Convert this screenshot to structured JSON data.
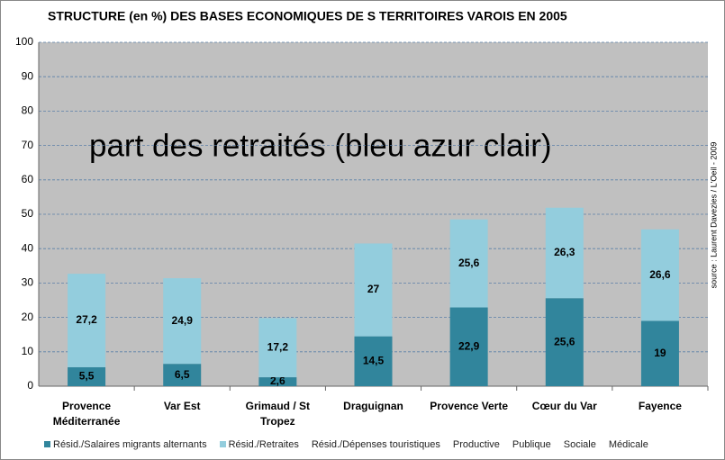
{
  "chart_data": {
    "type": "stacked_bar",
    "title": "STRUCTURE (en %) DES BASES ECONOMIQUES DE S TERRITOIRES VAROIS EN 2005",
    "annotation": "part des retraités (bleu azur clair)",
    "source": "source : Laurent Davezies / L'Oeil - 2009",
    "categories": [
      "Provence Méditerranée",
      "Var Est",
      "Grimaud / St Tropez",
      "Draguignan",
      "Provence Verte",
      "Cœur du Var",
      "Fayence"
    ],
    "series": [
      {
        "name": "Résid./Salaires migrants alternants",
        "color": "#31859c",
        "values": [
          5.5,
          6.5,
          2.6,
          14.5,
          22.9,
          25.6,
          19
        ],
        "value_labels": [
          "5,5",
          "6,5",
          "2,6",
          "14,5",
          "22,9",
          "25,6",
          "19"
        ]
      },
      {
        "name": "Résid./Retraites",
        "color": "#93cddd",
        "values": [
          27.2,
          24.9,
          17.2,
          27,
          25.6,
          26.3,
          26.6
        ],
        "value_labels": [
          "27,2",
          "24,9",
          "17,2",
          "27",
          "25,6",
          "26,3",
          "26,6"
        ]
      },
      {
        "name": "Résid./Dépenses touristiques",
        "values": [
          null,
          null,
          null,
          null,
          null,
          null,
          null
        ]
      },
      {
        "name": "Productive",
        "values": [
          null,
          null,
          null,
          null,
          null,
          null,
          null
        ]
      },
      {
        "name": "Publique",
        "values": [
          null,
          null,
          null,
          null,
          null,
          null,
          null
        ]
      },
      {
        "name": "Sociale",
        "values": [
          null,
          null,
          null,
          null,
          null,
          null,
          null
        ]
      },
      {
        "name": "Médicale",
        "values": [
          null,
          null,
          null,
          null,
          null,
          null,
          null
        ]
      }
    ],
    "ylim": [
      0,
      100
    ],
    "yticks": [
      0,
      10,
      20,
      30,
      40,
      50,
      60,
      70,
      80,
      90,
      100
    ],
    "grid": true
  }
}
